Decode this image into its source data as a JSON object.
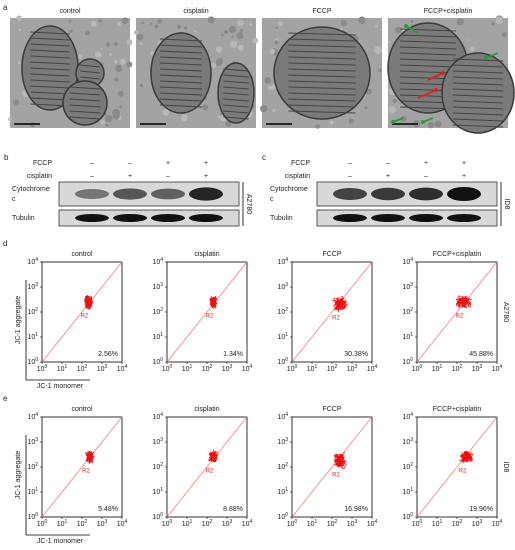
{
  "panel_a": {
    "letter": "a",
    "titles": [
      "control",
      "cisplatin",
      "FCCP",
      "FCCP+cisplatin"
    ]
  },
  "panel_b": {
    "letter": "b",
    "rows": [
      {
        "label": "FCCP",
        "signs": [
          "–",
          "–",
          "+",
          "+"
        ]
      },
      {
        "label": "cisplatin",
        "signs": [
          "–",
          "+",
          "–",
          "+"
        ]
      }
    ],
    "band_label": [
      "Cytochrome",
      "c"
    ],
    "loading_label": "Tubulin",
    "cell_line": "A2780"
  },
  "panel_c": {
    "letter": "c",
    "rows": [
      {
        "label": "FCCP",
        "signs": [
          "–",
          "–",
          "+",
          "+"
        ]
      },
      {
        "label": "cisplatin",
        "signs": [
          "–",
          "+",
          "–",
          "+"
        ]
      }
    ],
    "band_label": [
      "Cytochrome",
      "c"
    ],
    "loading_label": "Tubulin",
    "cell_line": "ID8"
  },
  "panel_d": {
    "letter": "d",
    "titles": [
      "control",
      "cisplatin",
      "FCCP",
      "FCCP+cisplatin"
    ],
    "percents": [
      "2.56%",
      "1.34%",
      "30.38%",
      "45.88%"
    ],
    "gate": "R2",
    "y_label": "JC-1 aggregate",
    "x_label": "JC-1 monomer",
    "tick_base": "10",
    "tick_exps": [
      "0",
      "1",
      "2",
      "3",
      "4"
    ],
    "cell_line": "A2780"
  },
  "panel_e": {
    "letter": "e",
    "titles": [
      "control",
      "cisplatin",
      "FCCP",
      "FCCP+cisplatin"
    ],
    "percents": [
      "5.48%",
      "8.88%",
      "16.98%",
      "19.96%"
    ],
    "gate": "R2",
    "y_label": "JC-1 aggregate",
    "x_label": "JC-1 monomer",
    "tick_base": "10",
    "tick_exps": [
      "0",
      "1",
      "2",
      "3",
      "4"
    ],
    "cell_line": "ID8"
  }
}
